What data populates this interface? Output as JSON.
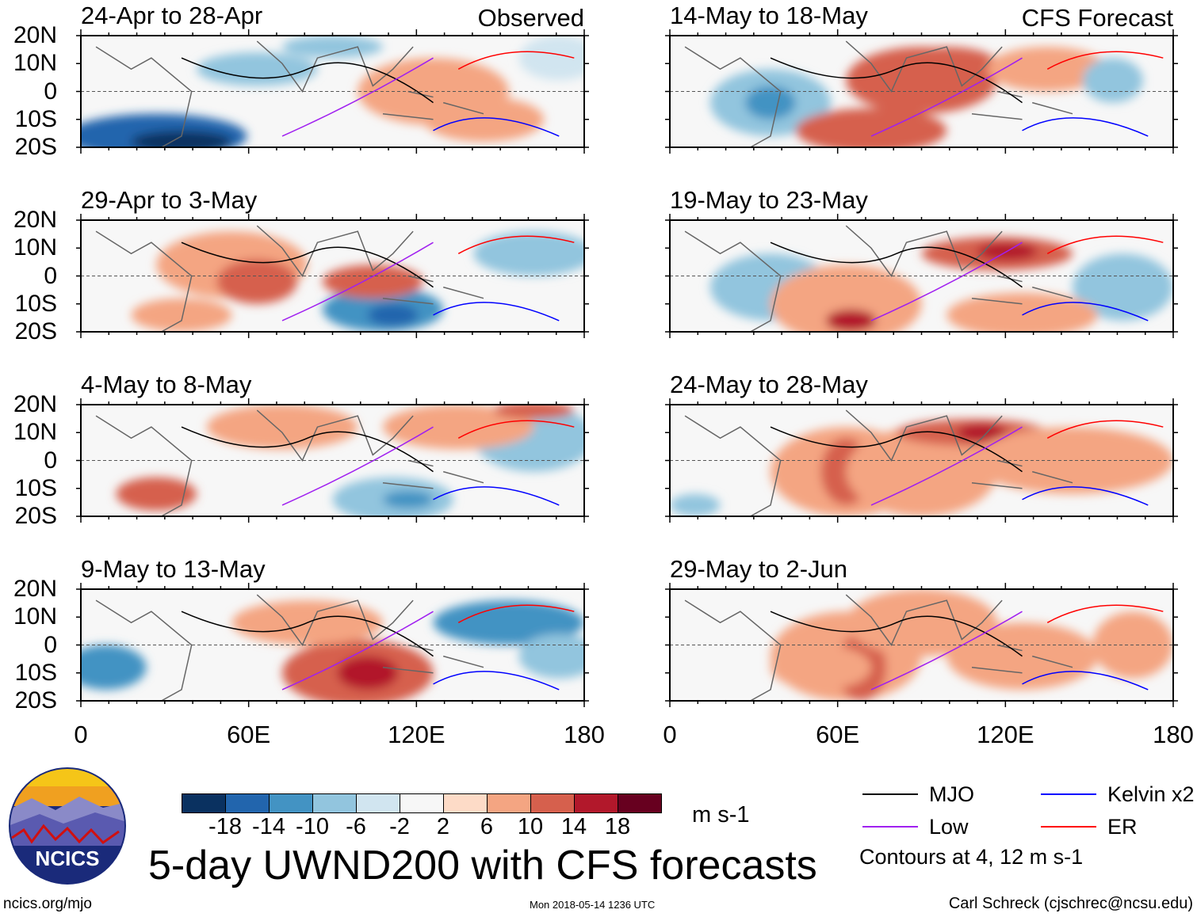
{
  "chart_data": {
    "type": "heatmap",
    "title": "5-day UWND200 with CFS forecasts",
    "units": "m s-1",
    "panels": [
      {
        "column": "Observed",
        "title": "24-Apr to 28-Apr"
      },
      {
        "column": "Observed",
        "title": "29-Apr to 3-May"
      },
      {
        "column": "Observed",
        "title": "4-May to 8-May"
      },
      {
        "column": "Observed",
        "title": "9-May to 13-May"
      },
      {
        "column": "CFS Forecast",
        "title": "14-May to 18-May"
      },
      {
        "column": "CFS Forecast",
        "title": "19-May to 23-May"
      },
      {
        "column": "CFS Forecast",
        "title": "24-May to 28-May"
      },
      {
        "column": "CFS Forecast",
        "title": "29-May to 2-Jun"
      }
    ],
    "column_labels": [
      "Observed",
      "CFS Forecast"
    ],
    "lat_ticks": [
      "20N",
      "10N",
      "0",
      "10S",
      "20S"
    ],
    "lon_ticks": [
      "0",
      "60E",
      "120E",
      "180"
    ],
    "xlim": [
      0,
      180
    ],
    "ylim": [
      -20,
      20
    ],
    "colorbar": {
      "levels": [
        "-18",
        "-14",
        "-10",
        "-6",
        "-2",
        "2",
        "6",
        "10",
        "14",
        "18"
      ],
      "colors": [
        "#0a3160",
        "#2265ad",
        "#4393c3",
        "#92c5de",
        "#d1e5f0",
        "#f7f7f7",
        "#fddbc7",
        "#f4a582",
        "#d6604d",
        "#b2182b",
        "#67001f"
      ]
    },
    "legend": [
      {
        "label": "MJO",
        "color": "#000000"
      },
      {
        "label": "Kelvin x2",
        "color": "#0000ff"
      },
      {
        "label": "Low",
        "color": "#a020f0"
      },
      {
        "label": "ER",
        "color": "#ff0000"
      }
    ],
    "contour_note": "Contours at 4, 12 m s-1"
  },
  "footer": {
    "site": "ncics.org/mjo",
    "timestamp": "Mon 2018-05-14 1236 UTC",
    "author": "Carl Schreck (cjschrec@ncsu.edu)",
    "logo_text": "NCICS"
  }
}
